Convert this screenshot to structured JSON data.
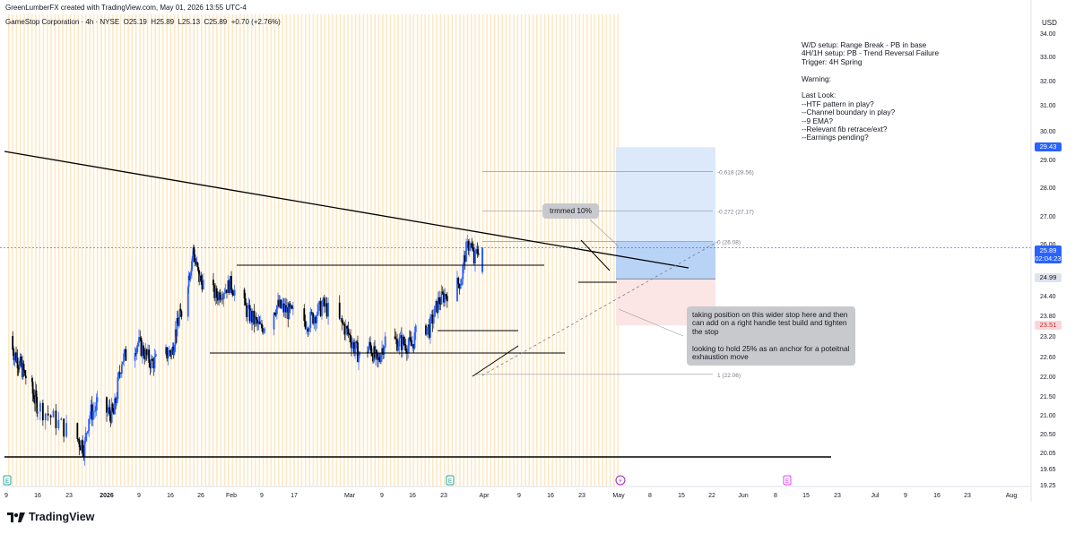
{
  "header": {
    "credit": "GreenLumberFX created with TradingView.com, May 01, 2026 13:55 UTC-4",
    "symbol": "GameStop Corporation · 4h · NYSE  O25.19  H25.89  L25.13  C25.89  +0.70 (+2.76%)",
    "currency": "USD"
  },
  "brand": {
    "name": "TradingView",
    "icon": "tradingview-logo"
  },
  "notes": {
    "text": "W/D setup: Range Break - PB in base\n4H/1H setup: PB - Trend Reversal Failure\nTrigger: 4H Spring\n\nWarning:\n\nLast Look:\n--HTF pattern in play?\n--Channel boundary in play?\n--9 EMA?\n--Relevant fib retrace/ext?\n--Earnings pending?"
  },
  "callouts": {
    "trimmed": "trmmed 10%",
    "position": "taking position on this wider stop here and then\ncan add on a right handle test build and tighten\nthe stop\n\nlooking to hold 25% as an anchor for a poteitnal\nexhaustion move"
  },
  "price_tags": {
    "target": "29.43",
    "current": "25.89",
    "countdown": "02:04:23",
    "entry": "24.99",
    "stop": "23.51"
  },
  "colors": {
    "bull": "#2962ff",
    "bear": "#000000",
    "target_zone": "#dbe9fb",
    "stop_zone": "#fbe5e5",
    "stripe": "#fde8c4",
    "current_tag": "#2962ff",
    "stop_tag_bg": "#f8d7da",
    "stop_tag_fg": "#c62828"
  },
  "chart_data": {
    "type": "candlestick",
    "title": "GameStop Corporation · 4h · NYSE",
    "ylabel": "USD",
    "ylim": [
      19.25,
      34.0
    ],
    "y_ticks": [
      34.0,
      33.0,
      32.0,
      31.0,
      30.0,
      29.0,
      28.0,
      27.0,
      26.0,
      25.0,
      24.4,
      23.8,
      23.2,
      22.6,
      22.0,
      21.5,
      21.0,
      20.5,
      20.05,
      19.65,
      19.25
    ],
    "x_ticks": [
      "9",
      "16",
      "23",
      "2026",
      "9",
      "16",
      "26",
      "Feb",
      "9",
      "17",
      "Mar",
      "9",
      "16",
      "23",
      "Apr",
      "9",
      "16",
      "23",
      "May",
      "8",
      "15",
      "22",
      "Jun",
      "8",
      "15",
      "23",
      "Jul",
      "9",
      "16",
      "23",
      "Aug"
    ],
    "close_anchors": [
      [
        "Jan 9",
        23.2
      ],
      [
        "Jan 13",
        22.5
      ],
      [
        "Jan 16",
        22.0
      ],
      [
        "Jan 20",
        21.3
      ],
      [
        "Jan 23",
        20.6
      ],
      [
        "Jan 27",
        20.2
      ],
      [
        "Jan 28",
        21.0
      ],
      [
        "Jan 30",
        21.2
      ],
      [
        "Feb 3",
        21.0
      ],
      [
        "Feb 5",
        22.5
      ],
      [
        "Feb 9",
        23.0
      ],
      [
        "Feb 12",
        22.4
      ],
      [
        "Feb 17",
        22.8
      ],
      [
        "Feb 18",
        23.3
      ],
      [
        "Feb 20",
        23.9
      ],
      [
        "Feb 23",
        25.3
      ],
      [
        "Feb 24",
        25.8
      ],
      [
        "Feb 26",
        25.0
      ],
      [
        "Mar 2",
        24.4
      ],
      [
        "Mar 5",
        24.8
      ],
      [
        "Mar 9",
        23.9
      ],
      [
        "Mar 12",
        23.4
      ],
      [
        "Mar 16",
        24.1
      ],
      [
        "Mar 19",
        23.9
      ],
      [
        "Mar 23",
        23.6
      ],
      [
        "Mar 26",
        24.1
      ],
      [
        "Mar 30",
        23.5
      ],
      [
        "Apr 1",
        23.0
      ],
      [
        "Apr 3",
        22.6
      ],
      [
        "Apr 6",
        22.9
      ],
      [
        "Apr 8",
        22.4
      ],
      [
        "Apr 10",
        23.1
      ],
      [
        "Apr 14",
        23.0
      ],
      [
        "Apr 16",
        22.9
      ],
      [
        "Apr 18",
        23.6
      ],
      [
        "Apr 20",
        23.4
      ],
      [
        "Apr 22",
        24.2
      ],
      [
        "Apr 24",
        24.5
      ],
      [
        "Apr 27",
        24.9
      ],
      [
        "Apr 28",
        25.7
      ],
      [
        "Apr 29",
        26.1
      ],
      [
        "Apr 30",
        25.5
      ],
      [
        "May 1",
        25.89
      ]
    ],
    "last_candle": {
      "open": 25.19,
      "high": 25.89,
      "low": 25.13,
      "close": 25.89,
      "change": 0.7,
      "change_pct": 2.76
    },
    "fib_levels": [
      {
        "ratio": "-0.618",
        "price": 28.56,
        "label": "-0.618 (28.56)"
      },
      {
        "ratio": "-0.272",
        "price": 27.17,
        "label": "-0.272 (27.17)"
      },
      {
        "ratio": "0",
        "price": 26.08,
        "label": "0 (26.08)"
      },
      {
        "ratio": "1",
        "price": 22.06,
        "label": "1 (22.06)"
      }
    ],
    "position": {
      "entry": 24.99,
      "target": 29.43,
      "stop": 23.51
    },
    "event_markers": [
      {
        "date": "Jan 6",
        "type": "earnings",
        "label": "E"
      },
      {
        "date": "Mar 24",
        "type": "earnings",
        "label": "E"
      },
      {
        "date": "Apr 30",
        "type": "dividend",
        "label": "⚡"
      },
      {
        "date": "Jun 9",
        "type": "earnings",
        "label": "E"
      }
    ]
  }
}
